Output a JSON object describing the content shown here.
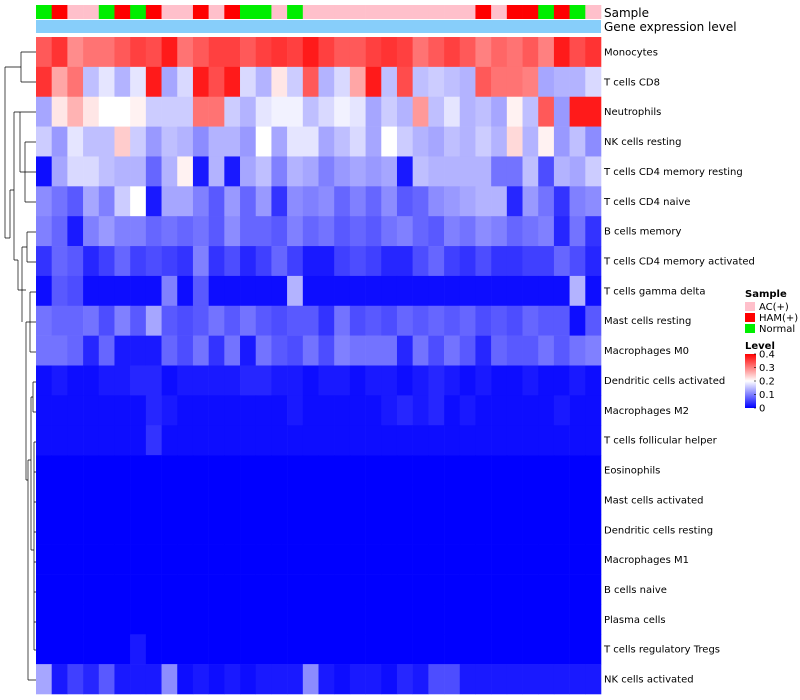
{
  "chart_data": {
    "type": "heatmap",
    "rows": [
      "Monocytes",
      "T cells CD8",
      "Neutrophils",
      "NK cells resting",
      "T cells CD4 memory resting",
      "T cells CD4 naive",
      "B cells memory",
      "T cells CD4 memory activated",
      "T cells gamma delta",
      "Mast cells resting",
      "Macrophages M0",
      "Dendritic cells activated",
      "Macrophages M2",
      "T cells follicular helper",
      "Eosinophils",
      "Mast cells activated",
      "Dendritic cells resting",
      "Macrophages M1",
      "B cells naive",
      "Plasma cells",
      "T cells regulatory  Tregs",
      "NK cells activated"
    ],
    "column_annotation": {
      "sample_label": "Sample",
      "group_label": "Gene expression level",
      "samples": [
        "Normal",
        "HAM(+)",
        "AC(+)",
        "AC(+)",
        "Normal",
        "HAM(+)",
        "Normal",
        "HAM(+)",
        "AC(+)",
        "AC(+)",
        "HAM(+)",
        "AC(+)",
        "HAM(+)",
        "Normal",
        "Normal",
        "AC(+)",
        "Normal",
        "AC(+)",
        "AC(+)",
        "AC(+)",
        "AC(+)",
        "AC(+)",
        "AC(+)",
        "AC(+)",
        "AC(+)",
        "AC(+)",
        "AC(+)",
        "AC(+)",
        "HAM(+)",
        "AC(+)",
        "HAM(+)",
        "HAM(+)",
        "Normal",
        "HAM(+)",
        "Normal",
        "AC(+)"
      ],
      "sample_colors": {
        "AC(+)": "#ffc0cb",
        "HAM(+)": "#ff0000",
        "Normal": "#00ee00"
      },
      "group_color": "#87cefa"
    },
    "color_scale": {
      "min": 0,
      "mid": 0.2,
      "max": 0.4,
      "low_color": "#0000ff",
      "mid_color": "#ffffff",
      "high_color": "#ff0000"
    },
    "legend": {
      "sample_title": "Sample",
      "sample_entries": [
        "AC(+)",
        "HAM(+)",
        "Normal"
      ],
      "level_title": "Level",
      "level_ticks": [
        "0.4",
        "0.3",
        "0.2",
        "0.1",
        "0"
      ],
      "position": "right"
    },
    "values": [
      [
        0.33,
        0.36,
        0.29,
        0.31,
        0.31,
        0.33,
        0.35,
        0.34,
        0.38,
        0.31,
        0.33,
        0.35,
        0.35,
        0.33,
        0.35,
        0.36,
        0.35,
        0.38,
        0.35,
        0.33,
        0.33,
        0.35,
        0.36,
        0.35,
        0.31,
        0.33,
        0.35,
        0.33,
        0.3,
        0.32,
        0.31,
        0.33,
        0.3,
        0.38,
        0.34,
        0.36
      ],
      [
        0.36,
        0.27,
        0.31,
        0.15,
        0.18,
        0.14,
        0.18,
        0.38,
        0.13,
        0.17,
        0.38,
        0.34,
        0.38,
        0.17,
        0.14,
        0.22,
        0.16,
        0.33,
        0.14,
        0.17,
        0.27,
        0.38,
        0.15,
        0.34,
        0.15,
        0.16,
        0.15,
        0.14,
        0.33,
        0.31,
        0.31,
        0.3,
        0.13,
        0.14,
        0.14,
        0.17
      ],
      [
        0.13,
        0.22,
        0.26,
        0.22,
        0.2,
        0.2,
        0.21,
        0.16,
        0.16,
        0.16,
        0.31,
        0.31,
        0.16,
        0.14,
        0.18,
        0.19,
        0.19,
        0.15,
        0.17,
        0.19,
        0.18,
        0.13,
        0.16,
        0.14,
        0.28,
        0.15,
        0.18,
        0.14,
        0.15,
        0.13,
        0.21,
        0.15,
        0.33,
        0.12,
        0.38,
        0.38
      ],
      [
        0.16,
        0.12,
        0.18,
        0.15,
        0.15,
        0.24,
        0.16,
        0.12,
        0.15,
        0.14,
        0.11,
        0.14,
        0.14,
        0.12,
        0.2,
        0.13,
        0.18,
        0.18,
        0.13,
        0.15,
        0.17,
        0.13,
        0.2,
        0.16,
        0.14,
        0.13,
        0.15,
        0.14,
        0.16,
        0.14,
        0.23,
        0.14,
        0.21,
        0.12,
        0.15,
        0.11
      ],
      [
        0.01,
        0.13,
        0.17,
        0.17,
        0.15,
        0.14,
        0.14,
        0.08,
        0.14,
        0.21,
        0.02,
        0.14,
        0.02,
        0.13,
        0.15,
        0.1,
        0.14,
        0.13,
        0.1,
        0.12,
        0.13,
        0.12,
        0.13,
        0.02,
        0.15,
        0.14,
        0.14,
        0.14,
        0.14,
        0.09,
        0.09,
        0.15,
        0.06,
        0.14,
        0.13,
        0.16
      ],
      [
        0.11,
        0.09,
        0.07,
        0.13,
        0.1,
        0.16,
        0.2,
        0.02,
        0.13,
        0.13,
        0.1,
        0.07,
        0.12,
        0.08,
        0.12,
        0.04,
        0.11,
        0.1,
        0.11,
        0.08,
        0.1,
        0.08,
        0.11,
        0.07,
        0.08,
        0.11,
        0.12,
        0.13,
        0.14,
        0.14,
        0.03,
        0.12,
        0.09,
        0.04,
        0.1,
        0.11
      ],
      [
        0.1,
        0.08,
        0.02,
        0.1,
        0.12,
        0.1,
        0.1,
        0.08,
        0.09,
        0.08,
        0.09,
        0.07,
        0.11,
        0.08,
        0.08,
        0.07,
        0.1,
        0.08,
        0.09,
        0.07,
        0.08,
        0.07,
        0.09,
        0.1,
        0.08,
        0.07,
        0.1,
        0.09,
        0.11,
        0.1,
        0.08,
        0.09,
        0.1,
        0.03,
        0.09,
        0.04
      ],
      [
        0.04,
        0.08,
        0.07,
        0.03,
        0.05,
        0.08,
        0.05,
        0.06,
        0.05,
        0.04,
        0.1,
        0.04,
        0.06,
        0.03,
        0.05,
        0.08,
        0.05,
        0.02,
        0.02,
        0.05,
        0.06,
        0.05,
        0.03,
        0.03,
        0.06,
        0.08,
        0.05,
        0.04,
        0.06,
        0.04,
        0.04,
        0.05,
        0.05,
        0.08,
        0.06,
        0.03
      ],
      [
        0.01,
        0.07,
        0.06,
        0.01,
        0.01,
        0.01,
        0.01,
        0.01,
        0.1,
        0.01,
        0.07,
        0.01,
        0.01,
        0.01,
        0.01,
        0.01,
        0.14,
        0.01,
        0.01,
        0.01,
        0.01,
        0.01,
        0.01,
        0.01,
        0.01,
        0.01,
        0.01,
        0.01,
        0.01,
        0.01,
        0.01,
        0.01,
        0.01,
        0.01,
        0.14,
        0.01
      ],
      [
        0.09,
        0.08,
        0.08,
        0.09,
        0.06,
        0.1,
        0.07,
        0.13,
        0.07,
        0.06,
        0.07,
        0.09,
        0.07,
        0.09,
        0.07,
        0.06,
        0.07,
        0.07,
        0.04,
        0.09,
        0.06,
        0.07,
        0.06,
        0.08,
        0.07,
        0.08,
        0.07,
        0.08,
        0.06,
        0.07,
        0.06,
        0.08,
        0.07,
        0.07,
        0.01,
        0.07
      ],
      [
        0.09,
        0.09,
        0.08,
        0.03,
        0.08,
        0.02,
        0.02,
        0.02,
        0.08,
        0.06,
        0.09,
        0.04,
        0.09,
        0.02,
        0.09,
        0.07,
        0.06,
        0.09,
        0.06,
        0.1,
        0.09,
        0.09,
        0.09,
        0.03,
        0.09,
        0.06,
        0.09,
        0.07,
        0.03,
        0.08,
        0.07,
        0.07,
        0.09,
        0.07,
        0.09,
        0.1
      ],
      [
        0.01,
        0.02,
        0.01,
        0.01,
        0.02,
        0.02,
        0.03,
        0.03,
        0.01,
        0.02,
        0.02,
        0.02,
        0.02,
        0.03,
        0.03,
        0.02,
        0.02,
        0.01,
        0.02,
        0.02,
        0.01,
        0.02,
        0.02,
        0.01,
        0.02,
        0.03,
        0.02,
        0.01,
        0.02,
        0.01,
        0.01,
        0.02,
        0.01,
        0.01,
        0.02,
        0.01
      ],
      [
        0.01,
        0.01,
        0.01,
        0.01,
        0.01,
        0.01,
        0.01,
        0.03,
        0.02,
        0.01,
        0.01,
        0.01,
        0.01,
        0.01,
        0.01,
        0.01,
        0.02,
        0.01,
        0.01,
        0.01,
        0.01,
        0.01,
        0.02,
        0.03,
        0.02,
        0.03,
        0.01,
        0.02,
        0.01,
        0.01,
        0.01,
        0.01,
        0.01,
        0.02,
        0.01,
        0.01
      ],
      [
        0.01,
        0.01,
        0.01,
        0.01,
        0.01,
        0.01,
        0.01,
        0.04,
        0.01,
        0.01,
        0.01,
        0.01,
        0.01,
        0.01,
        0.01,
        0.01,
        0.01,
        0.01,
        0.01,
        0.01,
        0.01,
        0.01,
        0.01,
        0.01,
        0.01,
        0.01,
        0.01,
        0.01,
        0.01,
        0.01,
        0.01,
        0.01,
        0.01,
        0.01,
        0.01,
        0.01
      ],
      [
        0.0,
        0.0,
        0.0,
        0.0,
        0.0,
        0.0,
        0.0,
        0.0,
        0.0,
        0.0,
        0.0,
        0.0,
        0.0,
        0.0,
        0.0,
        0.0,
        0.0,
        0.0,
        0.0,
        0.0,
        0.0,
        0.0,
        0.0,
        0.0,
        0.0,
        0.0,
        0.0,
        0.0,
        0.0,
        0.0,
        0.0,
        0.0,
        0.0,
        0.0,
        0.0,
        0.0
      ],
      [
        0.0,
        0.0,
        0.0,
        0.0,
        0.0,
        0.0,
        0.0,
        0.0,
        0.0,
        0.0,
        0.0,
        0.0,
        0.0,
        0.0,
        0.0,
        0.0,
        0.0,
        0.0,
        0.0,
        0.0,
        0.0,
        0.0,
        0.0,
        0.0,
        0.0,
        0.0,
        0.0,
        0.0,
        0.0,
        0.0,
        0.0,
        0.0,
        0.0,
        0.0,
        0.0,
        0.0
      ],
      [
        0.0,
        0.0,
        0.0,
        0.0,
        0.0,
        0.0,
        0.0,
        0.0,
        0.0,
        0.0,
        0.0,
        0.0,
        0.0,
        0.0,
        0.0,
        0.0,
        0.0,
        0.0,
        0.0,
        0.0,
        0.0,
        0.0,
        0.0,
        0.0,
        0.0,
        0.0,
        0.0,
        0.0,
        0.0,
        0.0,
        0.0,
        0.0,
        0.0,
        0.0,
        0.0,
        0.0
      ],
      [
        0.0,
        0.0,
        0.0,
        0.0,
        0.0,
        0.0,
        0.0,
        0.0,
        0.0,
        0.0,
        0.0,
        0.0,
        0.0,
        0.0,
        0.0,
        0.0,
        0.0,
        0.0,
        0.0,
        0.0,
        0.0,
        0.0,
        0.0,
        0.0,
        0.0,
        0.0,
        0.0,
        0.0,
        0.0,
        0.0,
        0.0,
        0.0,
        0.0,
        0.0,
        0.0,
        0.0
      ],
      [
        0.0,
        0.0,
        0.0,
        0.0,
        0.0,
        0.0,
        0.0,
        0.0,
        0.0,
        0.0,
        0.0,
        0.0,
        0.0,
        0.0,
        0.0,
        0.0,
        0.0,
        0.0,
        0.0,
        0.0,
        0.0,
        0.0,
        0.0,
        0.0,
        0.0,
        0.0,
        0.0,
        0.0,
        0.0,
        0.0,
        0.0,
        0.0,
        0.0,
        0.0,
        0.0,
        0.0
      ],
      [
        0.0,
        0.0,
        0.0,
        0.0,
        0.0,
        0.0,
        0.0,
        0.0,
        0.0,
        0.0,
        0.0,
        0.0,
        0.0,
        0.0,
        0.0,
        0.0,
        0.0,
        0.0,
        0.0,
        0.0,
        0.0,
        0.0,
        0.0,
        0.0,
        0.0,
        0.0,
        0.0,
        0.0,
        0.0,
        0.0,
        0.0,
        0.0,
        0.0,
        0.0,
        0.0,
        0.0
      ],
      [
        0.0,
        0.0,
        0.0,
        0.0,
        0.0,
        0.0,
        0.02,
        0.0,
        0.0,
        0.0,
        0.0,
        0.0,
        0.0,
        0.0,
        0.0,
        0.0,
        0.0,
        0.0,
        0.0,
        0.0,
        0.0,
        0.0,
        0.0,
        0.0,
        0.0,
        0.0,
        0.0,
        0.0,
        0.0,
        0.0,
        0.0,
        0.0,
        0.0,
        0.0,
        0.0,
        0.0
      ],
      [
        0.13,
        0.02,
        0.05,
        0.03,
        0.07,
        0.02,
        0.02,
        0.02,
        0.11,
        0.01,
        0.02,
        0.01,
        0.02,
        0.01,
        0.02,
        0.02,
        0.02,
        0.11,
        0.02,
        0.01,
        0.02,
        0.02,
        0.01,
        0.03,
        0.02,
        0.06,
        0.06,
        0.02,
        0.02,
        0.02,
        0.02,
        0.02,
        0.02,
        0.02,
        0.02,
        0.02
      ]
    ]
  }
}
